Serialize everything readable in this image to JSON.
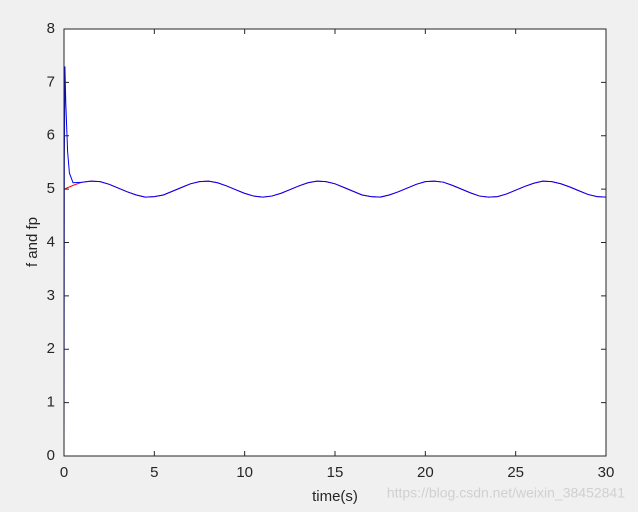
{
  "chart_data": {
    "type": "line",
    "xlabel": "time(s)",
    "ylabel": "f and fp",
    "annotation": "https://blog.csdn.net/weixin_38452841",
    "x": [
      0,
      0.02,
      0.05,
      0.1,
      0.2,
      0.3,
      0.5,
      1,
      1.5,
      2,
      2.5,
      3,
      3.5,
      4,
      4.5,
      5,
      5.5,
      6,
      6.5,
      7,
      7.5,
      8,
      8.5,
      9,
      9.5,
      10,
      10.5,
      11,
      11.5,
      12,
      12.5,
      13,
      13.5,
      14,
      14.5,
      15,
      15.5,
      16,
      16.5,
      17,
      17.5,
      18,
      18.5,
      19,
      19.5,
      20,
      20.5,
      21,
      21.5,
      22,
      22.5,
      23,
      23.5,
      24,
      24.5,
      25,
      25.5,
      26,
      26.5,
      27,
      27.5,
      28,
      28.5,
      29,
      29.5,
      30
    ],
    "series": [
      {
        "color": "#ff0000",
        "values": [
          5.0,
          5.0,
          5.01,
          5.01,
          5.03,
          5.04,
          5.07,
          5.13,
          5.15,
          5.14,
          5.09,
          5.02,
          4.95,
          4.89,
          4.85,
          4.86,
          4.89,
          4.96,
          5.03,
          5.1,
          5.14,
          5.15,
          5.12,
          5.06,
          4.99,
          4.92,
          4.87,
          4.85,
          4.87,
          4.92,
          4.99,
          5.06,
          5.12,
          5.15,
          5.14,
          5.1,
          5.03,
          4.96,
          4.89,
          4.86,
          4.85,
          4.89,
          4.95,
          5.02,
          5.09,
          5.14,
          5.15,
          5.13,
          5.07,
          5.0,
          4.93,
          4.87,
          4.85,
          4.86,
          4.91,
          4.98,
          5.05,
          5.11,
          5.15,
          5.14,
          5.1,
          5.04,
          4.97,
          4.9,
          4.86,
          4.85
        ]
      },
      {
        "color": "#0000ff",
        "values": [
          0,
          5.5,
          7.3,
          6.6,
          5.7,
          5.3,
          5.12,
          5.13,
          5.15,
          5.14,
          5.09,
          5.02,
          4.95,
          4.89,
          4.85,
          4.86,
          4.89,
          4.96,
          5.03,
          5.1,
          5.14,
          5.15,
          5.12,
          5.06,
          4.99,
          4.92,
          4.87,
          4.85,
          4.87,
          4.92,
          4.99,
          5.06,
          5.12,
          5.15,
          5.14,
          5.1,
          5.03,
          4.96,
          4.89,
          4.86,
          4.85,
          4.89,
          4.95,
          5.02,
          5.09,
          5.14,
          5.15,
          5.13,
          5.07,
          5.0,
          4.93,
          4.87,
          4.85,
          4.86,
          4.91,
          4.98,
          5.05,
          5.11,
          5.15,
          5.14,
          5.1,
          5.04,
          4.97,
          4.9,
          4.86,
          4.85
        ]
      }
    ],
    "xlim": [
      0,
      30
    ],
    "xticks": [
      0,
      5,
      10,
      15,
      20,
      25,
      30
    ],
    "ylim": [
      0,
      8
    ],
    "yticks": [
      0,
      1,
      2,
      3,
      4,
      5,
      6,
      7,
      8
    ]
  }
}
